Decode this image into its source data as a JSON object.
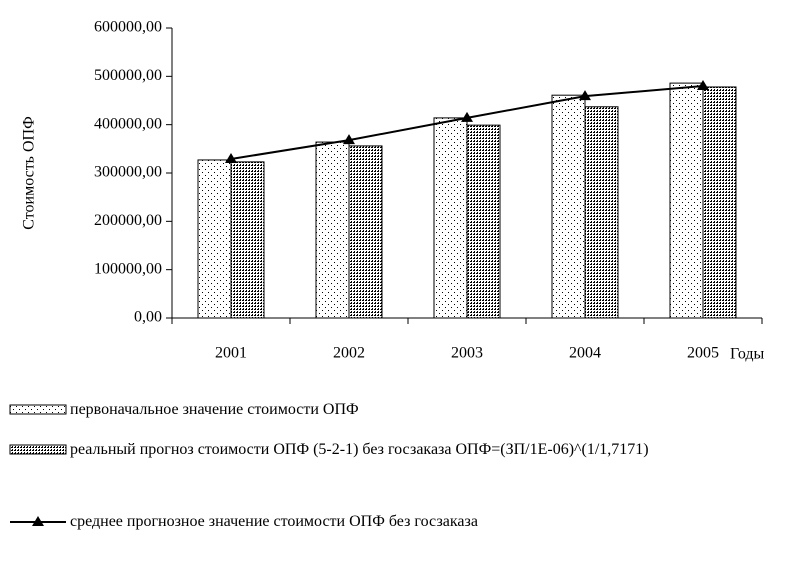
{
  "chart_data": {
    "type": "bar_line",
    "y_axis_label": "Стоимость ОПФ",
    "x_axis_label": "Годы",
    "categories": [
      "2001",
      "2002",
      "2003",
      "2004",
      "2005"
    ],
    "series": [
      {
        "name": "первоначальное значение стоимости ОПФ",
        "type": "bar",
        "color": "#000000",
        "values": [
          327000,
          364000,
          414000,
          461000,
          486000
        ]
      },
      {
        "name": "реальный прогноз стоимости ОПФ (5-2-1) без госзаказа ОПФ=(ЗП/1Е-06)^(1/1,7171)",
        "type": "bar",
        "color": "#000000",
        "values": [
          323000,
          356000,
          399000,
          437000,
          478000
        ]
      },
      {
        "name": "среднее прогнозное значение стоимости ОПФ без госзаказа",
        "type": "line",
        "color": "#000000",
        "values": [
          329000,
          368000,
          414000,
          459000,
          480000
        ]
      }
    ],
    "ylim": [
      0,
      600000
    ],
    "yticks": [
      {
        "value": 0,
        "label": "0,00"
      },
      {
        "value": 100000,
        "label": "100000,00"
      },
      {
        "value": 200000,
        "label": "200000,00"
      },
      {
        "value": 300000,
        "label": "300000,00"
      },
      {
        "value": 400000,
        "label": "400000,00"
      },
      {
        "value": 500000,
        "label": "500000,00"
      },
      {
        "value": 600000,
        "label": "600000,00"
      }
    ],
    "grid": false
  }
}
